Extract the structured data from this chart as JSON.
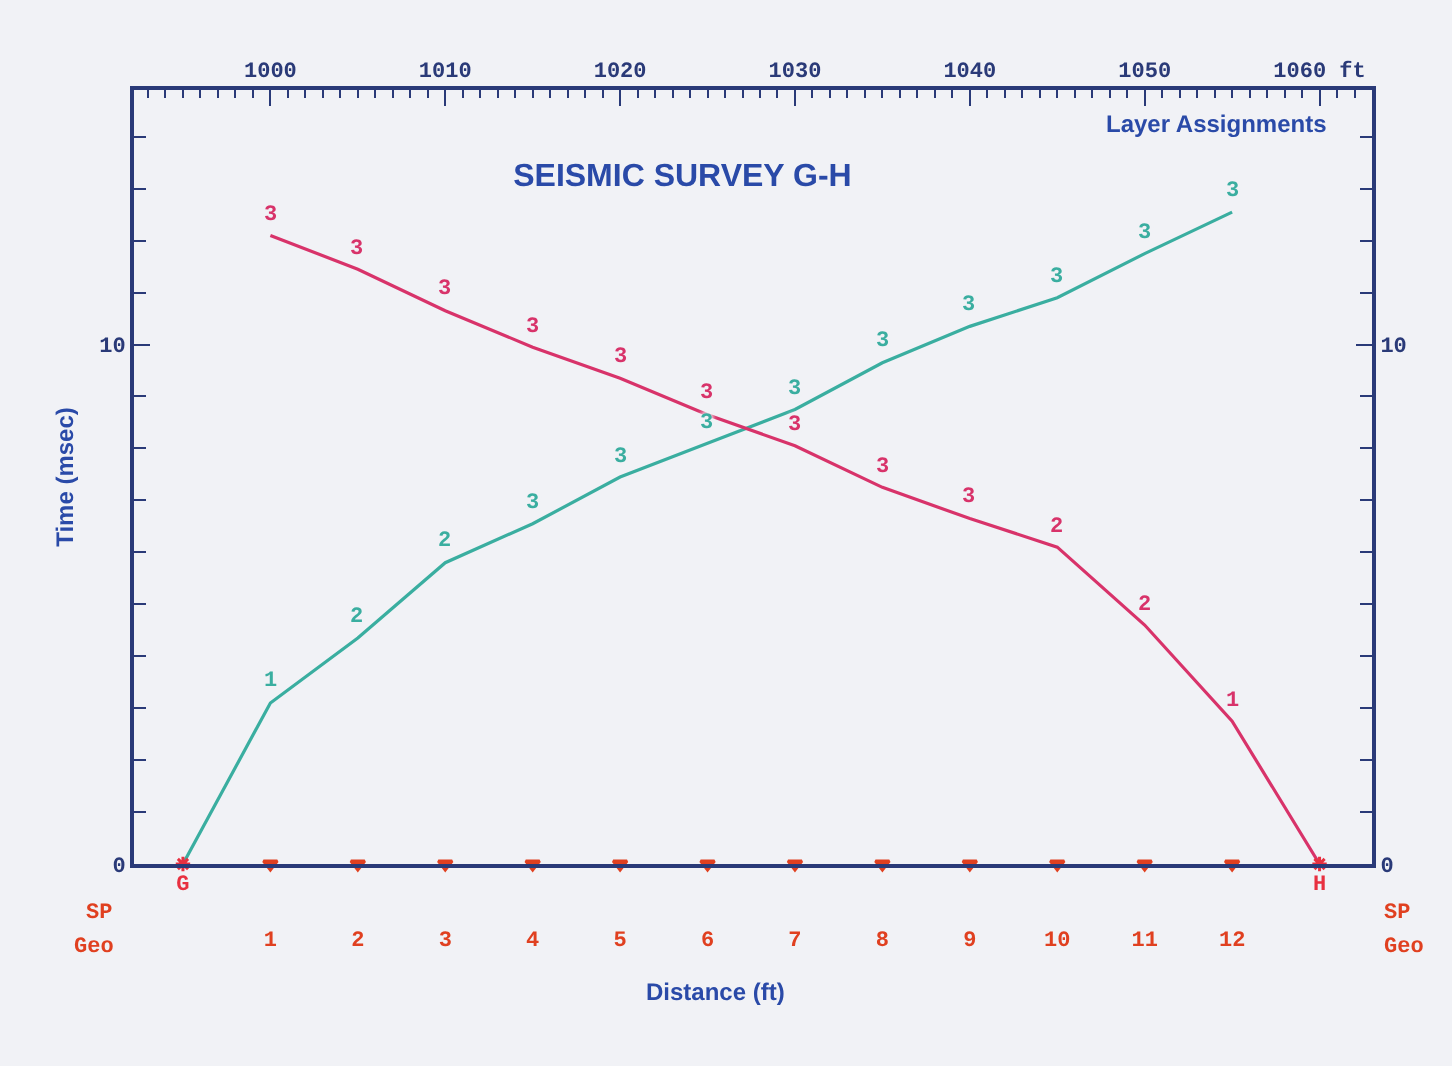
{
  "chart_data": {
    "type": "line",
    "title": "SEISMIC SURVEY G-H",
    "xlabel": "Distance (ft)",
    "ylabel": "Time (msec)",
    "series": [
      {
        "color": "#3aaea0",
        "marker": "none",
        "x": [
          0,
          1,
          2,
          3,
          4,
          5,
          6,
          7,
          8,
          9,
          10,
          11,
          12
        ],
        "values": [
          0,
          3.1,
          4.35,
          5.8,
          6.55,
          7.45,
          8.1,
          8.75,
          9.65,
          10.35,
          10.9,
          11.75,
          12.55
        ]
      },
      {
        "color": "#d8336a",
        "marker": "none",
        "x": [
          1,
          2,
          3,
          4,
          5,
          6,
          7,
          8,
          9,
          10,
          11,
          12,
          13
        ],
        "values": [
          12.1,
          11.45,
          10.65,
          9.95,
          9.35,
          8.65,
          8.05,
          7.25,
          6.65,
          6.1,
          4.6,
          2.75,
          0
        ]
      },
      {
        "type": "scatter",
        "color": "#e04020",
        "marker": "triangle",
        "x": [
          1,
          2,
          3,
          4,
          5,
          6,
          7,
          8,
          9,
          10,
          11,
          12
        ],
        "values": [
          0,
          0,
          0,
          0,
          0,
          0,
          0,
          0,
          0,
          0,
          0,
          0
        ]
      },
      {
        "type": "scatter",
        "name": "G",
        "color": "#e83040",
        "marker": "cross",
        "x": [
          0
        ],
        "values": [
          0
        ]
      },
      {
        "type": "scatter",
        "name": "H",
        "color": "#e83040",
        "marker": "cross",
        "x": [
          13
        ],
        "values": [
          0
        ]
      }
    ],
    "xlim": [
      -0.56,
      13.6
    ],
    "xticks": [
      1,
      2,
      3,
      4,
      5,
      6,
      7,
      8,
      9,
      10,
      11,
      12
    ],
    "x2lim": [
      992.2,
      1063
    ],
    "x2ticks": [
      1000,
      1010,
      1020,
      1030,
      1040,
      1050,
      {
        "value": 1060,
        "label": "1060 ft"
      }
    ],
    "ylim": [
      0,
      14.9
    ],
    "yticks": [
      0,
      10
    ],
    "y2lim": [
      0,
      14.9
    ],
    "y2ticks": [
      0,
      10
    ],
    "grid": false,
    "annotations": [
      "Layer Assignments",
      "SP",
      "Geo",
      "SP",
      "Geo",
      {
        "text": "1",
        "x": 1,
        "y": 3.1
      },
      {
        "text": "2",
        "x": 2,
        "y": 4.35
      },
      {
        "text": "2",
        "x": 3,
        "y": 5.8
      },
      {
        "text": "3",
        "x": 4,
        "y": 6.55
      },
      {
        "text": "3",
        "x": 5,
        "y": 7.45
      },
      {
        "text": "3",
        "x": 6,
        "y": 8.1
      },
      {
        "text": "3",
        "x": 7,
        "y": 8.75
      },
      {
        "text": "3",
        "x": 8,
        "y": 9.65
      },
      {
        "text": "3",
        "x": 9,
        "y": 10.35
      },
      {
        "text": "3",
        "x": 10,
        "y": 10.9
      },
      {
        "text": "3",
        "x": 11,
        "y": 11.75
      },
      {
        "text": "3",
        "x": 12,
        "y": 12.55
      },
      {
        "text": "3",
        "x": 1,
        "y": 12.1
      },
      {
        "text": "3",
        "x": 2,
        "y": 11.45
      },
      {
        "text": "3",
        "x": 3,
        "y": 10.65
      },
      {
        "text": "3",
        "x": 4,
        "y": 9.95
      },
      {
        "text": "3",
        "x": 5,
        "y": 9.35
      },
      {
        "text": "3",
        "x": 6,
        "y": 8.65
      },
      {
        "text": "3",
        "x": 7,
        "y": 8.05
      },
      {
        "text": "3",
        "x": 8,
        "y": 7.25
      },
      {
        "text": "3",
        "x": 9,
        "y": 6.65
      },
      {
        "text": "2",
        "x": 10,
        "y": 6.1
      },
      {
        "text": "2",
        "x": 11,
        "y": 4.6
      },
      {
        "text": "1",
        "x": 12,
        "y": 2.75
      }
    ]
  }
}
